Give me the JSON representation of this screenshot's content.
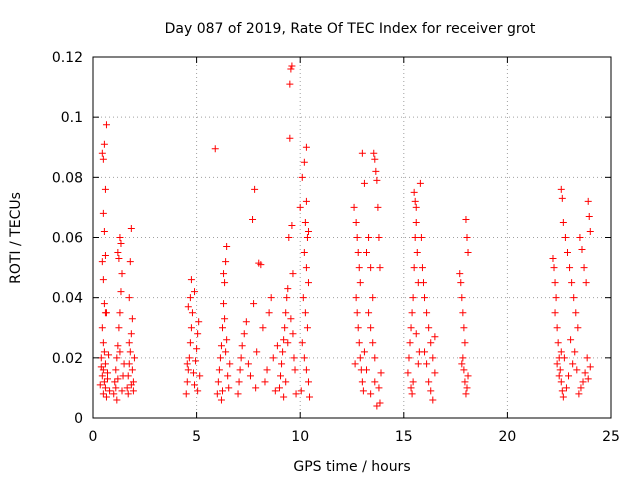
{
  "chart_data": {
    "type": "scatter",
    "title": "Day 087 of 2019, Rate Of TEC Index for receiver grot",
    "xlabel": "GPS time / hours",
    "ylabel": "ROTI / TECUs",
    "xlim": [
      0,
      25
    ],
    "ylim": [
      0,
      0.12
    ],
    "xticks": [
      0,
      5,
      10,
      15,
      20,
      25
    ],
    "yticks": [
      0,
      0.02,
      0.04,
      0.06,
      0.08,
      0.1,
      0.12
    ],
    "xtick_labels": [
      "0",
      "5",
      "10",
      "15",
      "20",
      "25"
    ],
    "ytick_labels": [
      "0",
      "0.02",
      "0.04",
      "0.06",
      "0.08",
      "0.1",
      "0.12"
    ],
    "grid": true,
    "marker": "+",
    "series": [
      {
        "name": "ROTI",
        "color": "#ff0000",
        "points": [
          [
            0.45,
            0.088
          ],
          [
            0.5,
            0.086
          ],
          [
            0.55,
            0.091
          ],
          [
            0.6,
            0.076
          ],
          [
            0.65,
            0.0975
          ],
          [
            0.5,
            0.068
          ],
          [
            0.55,
            0.062
          ],
          [
            0.45,
            0.052
          ],
          [
            0.6,
            0.054
          ],
          [
            0.5,
            0.046
          ],
          [
            0.55,
            0.038
          ],
          [
            0.6,
            0.035
          ],
          [
            0.45,
            0.03
          ],
          [
            0.5,
            0.025
          ],
          [
            0.55,
            0.022
          ],
          [
            0.4,
            0.02
          ],
          [
            0.6,
            0.018
          ],
          [
            0.5,
            0.016
          ],
          [
            0.45,
            0.014
          ],
          [
            0.55,
            0.012
          ],
          [
            0.6,
            0.01
          ],
          [
            0.5,
            0.008
          ],
          [
            0.65,
            0.007
          ],
          [
            0.7,
            0.015
          ],
          [
            0.75,
            0.021
          ],
          [
            0.4,
            0.017
          ],
          [
            0.65,
            0.035
          ],
          [
            0.7,
            0.013
          ],
          [
            0.35,
            0.011
          ],
          [
            0.8,
            0.009
          ],
          [
            1.0,
            0.008
          ],
          [
            1.05,
            0.012
          ],
          [
            1.1,
            0.016
          ],
          [
            1.15,
            0.02
          ],
          [
            1.2,
            0.024
          ],
          [
            1.25,
            0.03
          ],
          [
            1.3,
            0.035
          ],
          [
            1.35,
            0.042
          ],
          [
            1.4,
            0.048
          ],
          [
            1.2,
            0.055
          ],
          [
            1.3,
            0.06
          ],
          [
            1.25,
            0.053
          ],
          [
            1.35,
            0.058
          ],
          [
            1.1,
            0.01
          ],
          [
            1.45,
            0.014
          ],
          [
            1.5,
            0.018
          ],
          [
            1.15,
            0.006
          ],
          [
            1.4,
            0.009
          ],
          [
            1.3,
            0.022
          ],
          [
            1.2,
            0.013
          ],
          [
            1.65,
            0.01
          ],
          [
            1.7,
            0.014
          ],
          [
            1.75,
            0.018
          ],
          [
            1.8,
            0.022
          ],
          [
            1.85,
            0.028
          ],
          [
            1.9,
            0.033
          ],
          [
            1.75,
            0.04
          ],
          [
            1.8,
            0.052
          ],
          [
            1.85,
            0.063
          ],
          [
            1.95,
            0.012
          ],
          [
            1.7,
            0.008
          ],
          [
            1.9,
            0.016
          ],
          [
            2.0,
            0.02
          ],
          [
            1.75,
            0.025
          ],
          [
            1.85,
            0.011
          ],
          [
            1.95,
            0.009
          ],
          [
            4.5,
            0.008
          ],
          [
            4.55,
            0.012
          ],
          [
            4.6,
            0.016
          ],
          [
            4.65,
            0.02
          ],
          [
            4.7,
            0.025
          ],
          [
            4.75,
            0.03
          ],
          [
            4.8,
            0.035
          ],
          [
            4.7,
            0.04
          ],
          [
            4.75,
            0.046
          ],
          [
            4.6,
            0.037
          ],
          [
            4.85,
            0.015
          ],
          [
            4.9,
            0.011
          ],
          [
            4.95,
            0.019
          ],
          [
            5.0,
            0.023
          ],
          [
            5.05,
            0.028
          ],
          [
            5.1,
            0.032
          ],
          [
            5.15,
            0.014
          ],
          [
            4.55,
            0.018
          ],
          [
            4.9,
            0.042
          ],
          [
            5.05,
            0.009
          ],
          [
            5.9,
            0.0895
          ],
          [
            6.0,
            0.008
          ],
          [
            6.05,
            0.012
          ],
          [
            6.1,
            0.016
          ],
          [
            6.15,
            0.02
          ],
          [
            6.2,
            0.024
          ],
          [
            6.25,
            0.03
          ],
          [
            6.3,
            0.038
          ],
          [
            6.35,
            0.045
          ],
          [
            6.4,
            0.052
          ],
          [
            6.45,
            0.057
          ],
          [
            6.3,
            0.048
          ],
          [
            6.5,
            0.014
          ],
          [
            6.55,
            0.01
          ],
          [
            6.6,
            0.018
          ],
          [
            6.2,
            0.006
          ],
          [
            6.4,
            0.022
          ],
          [
            6.35,
            0.033
          ],
          [
            6.25,
            0.009
          ],
          [
            6.45,
            0.026
          ],
          [
            7.0,
            0.008
          ],
          [
            7.05,
            0.012
          ],
          [
            7.1,
            0.016
          ],
          [
            7.15,
            0.02
          ],
          [
            7.2,
            0.024
          ],
          [
            7.3,
            0.028
          ],
          [
            7.4,
            0.032
          ],
          [
            7.5,
            0.018
          ],
          [
            7.6,
            0.014
          ],
          [
            7.7,
            0.066
          ],
          [
            7.8,
            0.076
          ],
          [
            7.75,
            0.038
          ],
          [
            7.85,
            0.01
          ],
          [
            7.9,
            0.022
          ],
          [
            8.0,
            0.0515
          ],
          [
            8.1,
            0.051
          ],
          [
            8.2,
            0.03
          ],
          [
            8.3,
            0.012
          ],
          [
            8.4,
            0.016
          ],
          [
            8.5,
            0.035
          ],
          [
            8.6,
            0.04
          ],
          [
            8.7,
            0.02
          ],
          [
            8.8,
            0.009
          ],
          [
            8.9,
            0.024
          ],
          [
            9.0,
            0.01
          ],
          [
            9.05,
            0.014
          ],
          [
            9.1,
            0.018
          ],
          [
            9.15,
            0.022
          ],
          [
            9.2,
            0.026
          ],
          [
            9.25,
            0.03
          ],
          [
            9.3,
            0.035
          ],
          [
            9.35,
            0.04
          ],
          [
            9.4,
            0.043
          ],
          [
            9.45,
            0.06
          ],
          [
            9.5,
            0.093
          ],
          [
            9.55,
            0.116
          ],
          [
            9.5,
            0.111
          ],
          [
            9.6,
            0.117
          ],
          [
            9.6,
            0.064
          ],
          [
            9.65,
            0.048
          ],
          [
            9.7,
            0.02
          ],
          [
            9.75,
            0.016
          ],
          [
            9.8,
            0.008
          ],
          [
            9.4,
            0.025
          ],
          [
            9.3,
            0.012
          ],
          [
            9.2,
            0.007
          ],
          [
            9.55,
            0.033
          ],
          [
            9.65,
            0.028
          ],
          [
            10.0,
            0.07
          ],
          [
            10.1,
            0.08
          ],
          [
            10.2,
            0.085
          ],
          [
            10.3,
            0.09
          ],
          [
            10.25,
            0.065
          ],
          [
            10.35,
            0.06
          ],
          [
            10.2,
            0.055
          ],
          [
            10.3,
            0.05
          ],
          [
            10.4,
            0.045
          ],
          [
            10.15,
            0.04
          ],
          [
            10.25,
            0.035
          ],
          [
            10.35,
            0.03
          ],
          [
            10.1,
            0.025
          ],
          [
            10.2,
            0.02
          ],
          [
            10.3,
            0.016
          ],
          [
            10.4,
            0.012
          ],
          [
            10.05,
            0.009
          ],
          [
            10.45,
            0.007
          ],
          [
            10.3,
            0.072
          ],
          [
            10.4,
            0.062
          ],
          [
            12.6,
            0.07
          ],
          [
            12.7,
            0.065
          ],
          [
            12.75,
            0.06
          ],
          [
            12.8,
            0.055
          ],
          [
            12.85,
            0.05
          ],
          [
            12.9,
            0.045
          ],
          [
            12.7,
            0.04
          ],
          [
            12.75,
            0.035
          ],
          [
            12.8,
            0.03
          ],
          [
            12.85,
            0.025
          ],
          [
            12.9,
            0.02
          ],
          [
            12.95,
            0.016
          ],
          [
            13.0,
            0.012
          ],
          [
            13.05,
            0.009
          ],
          [
            12.65,
            0.018
          ],
          [
            13.1,
            0.022
          ],
          [
            13.0,
            0.088
          ],
          [
            13.1,
            0.078
          ],
          [
            13.2,
            0.055
          ],
          [
            13.3,
            0.06
          ],
          [
            13.4,
            0.05
          ],
          [
            13.5,
            0.04
          ],
          [
            13.3,
            0.035
          ],
          [
            13.4,
            0.03
          ],
          [
            13.5,
            0.025
          ],
          [
            13.6,
            0.02
          ],
          [
            13.55,
            0.088
          ],
          [
            13.6,
            0.086
          ],
          [
            13.65,
            0.082
          ],
          [
            13.7,
            0.079
          ],
          [
            13.75,
            0.07
          ],
          [
            13.8,
            0.06
          ],
          [
            13.85,
            0.05
          ],
          [
            13.9,
            0.015
          ],
          [
            13.8,
            0.01
          ],
          [
            13.85,
            0.005
          ],
          [
            13.7,
            0.004
          ],
          [
            13.6,
            0.012
          ],
          [
            13.4,
            0.008
          ],
          [
            13.2,
            0.016
          ],
          [
            15.2,
            0.015
          ],
          [
            15.25,
            0.02
          ],
          [
            15.3,
            0.025
          ],
          [
            15.35,
            0.03
          ],
          [
            15.4,
            0.035
          ],
          [
            15.45,
            0.04
          ],
          [
            15.5,
            0.05
          ],
          [
            15.55,
            0.06
          ],
          [
            15.6,
            0.07
          ],
          [
            15.5,
            0.075
          ],
          [
            15.55,
            0.072
          ],
          [
            15.6,
            0.065
          ],
          [
            15.65,
            0.055
          ],
          [
            15.7,
            0.045
          ],
          [
            15.35,
            0.01
          ],
          [
            15.4,
            0.008
          ],
          [
            15.45,
            0.012
          ],
          [
            15.7,
            0.018
          ],
          [
            15.75,
            0.022
          ],
          [
            15.6,
            0.028
          ],
          [
            15.8,
            0.078
          ],
          [
            15.85,
            0.06
          ],
          [
            15.9,
            0.05
          ],
          [
            15.95,
            0.045
          ],
          [
            16.0,
            0.04
          ],
          [
            16.1,
            0.035
          ],
          [
            16.2,
            0.03
          ],
          [
            16.3,
            0.025
          ],
          [
            16.4,
            0.02
          ],
          [
            16.5,
            0.015
          ],
          [
            16.2,
            0.012
          ],
          [
            16.3,
            0.009
          ],
          [
            16.4,
            0.006
          ],
          [
            16.1,
            0.018
          ],
          [
            16.0,
            0.022
          ],
          [
            16.5,
            0.027
          ],
          [
            17.7,
            0.048
          ],
          [
            17.75,
            0.045
          ],
          [
            17.8,
            0.04
          ],
          [
            17.85,
            0.035
          ],
          [
            17.9,
            0.03
          ],
          [
            17.95,
            0.025
          ],
          [
            18.0,
            0.066
          ],
          [
            18.05,
            0.06
          ],
          [
            18.1,
            0.055
          ],
          [
            17.85,
            0.02
          ],
          [
            17.9,
            0.016
          ],
          [
            17.95,
            0.012
          ],
          [
            18.0,
            0.008
          ],
          [
            18.05,
            0.01
          ],
          [
            18.1,
            0.014
          ],
          [
            17.8,
            0.018
          ],
          [
            22.2,
            0.053
          ],
          [
            22.25,
            0.05
          ],
          [
            22.3,
            0.045
          ],
          [
            22.35,
            0.04
          ],
          [
            22.3,
            0.035
          ],
          [
            22.4,
            0.03
          ],
          [
            22.45,
            0.025
          ],
          [
            22.5,
            0.02
          ],
          [
            22.55,
            0.016
          ],
          [
            22.6,
            0.012
          ],
          [
            22.65,
            0.009
          ],
          [
            22.7,
            0.007
          ],
          [
            22.4,
            0.018
          ],
          [
            22.5,
            0.014
          ],
          [
            22.6,
            0.022
          ],
          [
            22.6,
            0.076
          ],
          [
            22.65,
            0.073
          ],
          [
            22.7,
            0.065
          ],
          [
            22.8,
            0.06
          ],
          [
            22.9,
            0.055
          ],
          [
            23.0,
            0.05
          ],
          [
            23.1,
            0.045
          ],
          [
            23.2,
            0.04
          ],
          [
            23.3,
            0.035
          ],
          [
            23.4,
            0.03
          ],
          [
            23.5,
            0.06
          ],
          [
            23.6,
            0.056
          ],
          [
            23.7,
            0.05
          ],
          [
            23.8,
            0.045
          ],
          [
            23.9,
            0.072
          ],
          [
            23.95,
            0.067
          ],
          [
            24.0,
            0.062
          ],
          [
            23.85,
            0.02
          ],
          [
            23.75,
            0.015
          ],
          [
            23.65,
            0.012
          ],
          [
            23.55,
            0.01
          ],
          [
            23.45,
            0.008
          ],
          [
            23.35,
            0.016
          ],
          [
            23.25,
            0.022
          ],
          [
            23.15,
            0.018
          ],
          [
            23.05,
            0.026
          ],
          [
            22.95,
            0.014
          ],
          [
            22.85,
            0.01
          ],
          [
            22.75,
            0.02
          ],
          [
            23.9,
            0.013
          ],
          [
            24.0,
            0.017
          ]
        ]
      }
    ]
  }
}
